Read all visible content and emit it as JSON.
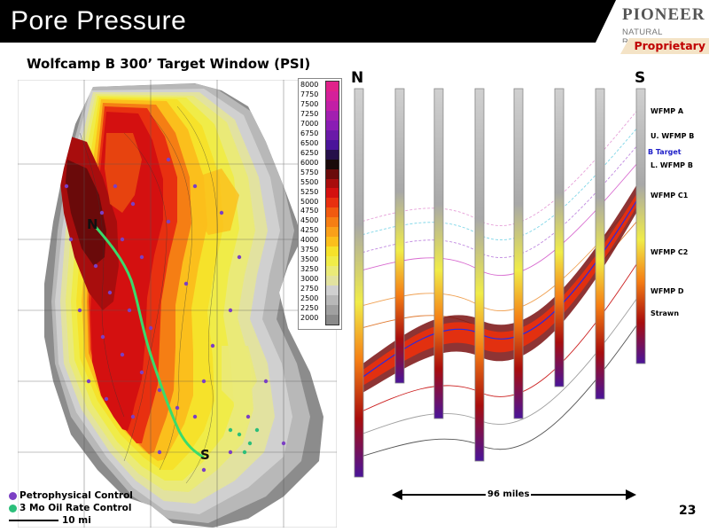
{
  "header": {
    "title": "Pore Pressure",
    "logo_name": "PIONEER",
    "logo_sub": "NATURAL RESOURCES",
    "proprietary": "Proprietary"
  },
  "map": {
    "title": "Wolfcamp B 300’ Target Window (PSI)",
    "north_label": "N",
    "south_label": "S",
    "legend_values": [
      "8000",
      "7750",
      "7500",
      "7250",
      "7000",
      "6750",
      "6500",
      "6250",
      "6000",
      "5750",
      "5500",
      "5250",
      "5000",
      "4750",
      "4500",
      "4250",
      "4000",
      "3750",
      "3500",
      "3250",
      "3000",
      "2750",
      "2500",
      "2250",
      "2000"
    ],
    "legend_colors": [
      "#e0218a",
      "#d4209a",
      "#c21fa6",
      "#a21fb0",
      "#8a1cb4",
      "#6a1aa8",
      "#4a149a",
      "#26104a",
      "#1a0a0a",
      "#6a0a0a",
      "#a80d0d",
      "#d41010",
      "#e83010",
      "#f05a10",
      "#f57e14",
      "#f9a01a",
      "#fbbf1c",
      "#f6e22a",
      "#f0ec48",
      "#eaea78",
      "#e2e2a0",
      "#d0d0d0",
      "#b8b8b8",
      "#a0a0a0",
      "#8a8a8a"
    ],
    "legend_items": [
      {
        "label": "Petrophysical Control",
        "color": "#7b3fc4"
      },
      {
        "label": "3 Mo Oil Rate Control",
        "color": "#2bbf7a"
      }
    ],
    "scale_label": "10 mi"
  },
  "section": {
    "left_label": "N",
    "right_label": "S",
    "formations": [
      "WFMP A",
      "U. WFMP B",
      "B Target",
      "L. WFMP B",
      "WFMP C1",
      "WFMP C2",
      "WFMP D",
      "Strawn"
    ],
    "distance": "96 miles"
  },
  "page_number": "23"
}
